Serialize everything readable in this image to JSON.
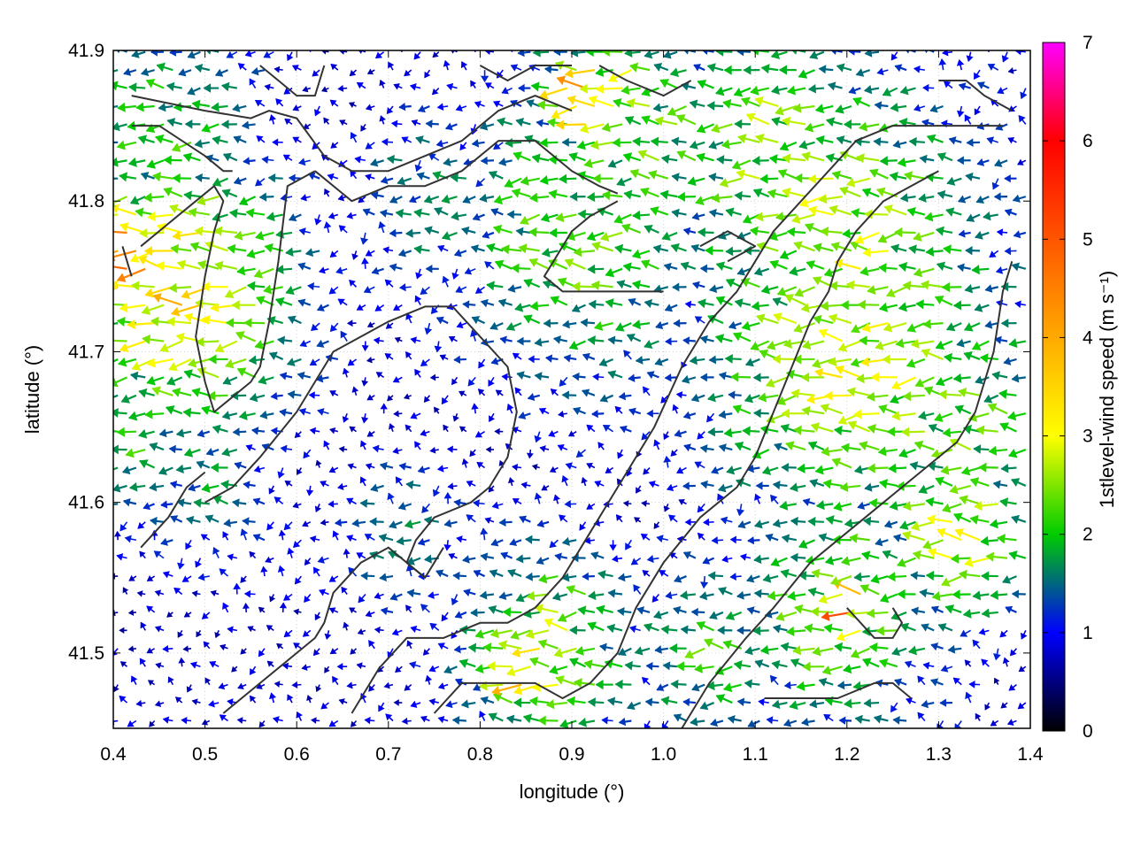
{
  "chart_data": {
    "type": "quiver",
    "xlabel": "longitude (°)",
    "ylabel": "latitude (°)",
    "xlim": [
      0.4,
      1.4
    ],
    "ylim": [
      41.45,
      41.9
    ],
    "x_ticks": [
      "0.4",
      "0.5",
      "0.6",
      "0.7",
      "0.8",
      "0.9",
      "1.0",
      "1.1",
      "1.2",
      "1.3",
      "1.4"
    ],
    "y_ticks": [
      "41.5",
      "41.6",
      "41.7",
      "41.8",
      "41.9"
    ],
    "grid": true,
    "colorbar": {
      "label": "1stlevel-wind speed (m s⁻¹)",
      "range": [
        0,
        7
      ],
      "ticks": [
        "0",
        "1",
        "2",
        "3",
        "4",
        "5",
        "6",
        "7"
      ],
      "colormap_stops": [
        {
          "value": 0,
          "color": "#000000"
        },
        {
          "value": 1,
          "color": "#0000ff"
        },
        {
          "value": 2,
          "color": "#00cc00"
        },
        {
          "value": 3,
          "color": "#ffff00"
        },
        {
          "value": 4,
          "color": "#ffaa00"
        },
        {
          "value": 5,
          "color": "#ff5500"
        },
        {
          "value": 6,
          "color": "#ff0000"
        },
        {
          "value": 7,
          "color": "#ff00ff"
        }
      ]
    },
    "wind_field": {
      "lon_start": 0.405,
      "lon_step": 0.02,
      "lon_count": 50,
      "lat_start": 41.455,
      "lat_step": 0.012,
      "lat_count": 38,
      "prevailing_direction": "westward",
      "speed_regions": [
        {
          "lon": 0.48,
          "lat": 41.74,
          "radius": 0.09,
          "speed": 3.2
        },
        {
          "lon": 0.42,
          "lat": 41.76,
          "radius": 0.05,
          "speed": 4.2
        },
        {
          "lon": 0.46,
          "lat": 41.85,
          "radius": 0.08,
          "speed": 2.0
        },
        {
          "lon": 0.75,
          "lat": 41.8,
          "radius": 0.06,
          "speed": 1.6
        },
        {
          "lon": 0.92,
          "lat": 41.78,
          "radius": 0.1,
          "speed": 2.3
        },
        {
          "lon": 0.95,
          "lat": 41.87,
          "radius": 0.06,
          "speed": 2.8
        },
        {
          "lon": 0.92,
          "lat": 41.87,
          "radius": 0.03,
          "speed": 4.0
        },
        {
          "lon": 1.0,
          "lat": 41.84,
          "radius": 0.08,
          "speed": 2.2
        },
        {
          "lon": 1.12,
          "lat": 41.84,
          "radius": 0.09,
          "speed": 2.4
        },
        {
          "lon": 1.2,
          "lat": 41.77,
          "radius": 0.12,
          "speed": 2.6
        },
        {
          "lon": 1.22,
          "lat": 41.7,
          "radius": 0.12,
          "speed": 2.8
        },
        {
          "lon": 1.32,
          "lat": 41.66,
          "radius": 0.09,
          "speed": 2.3
        },
        {
          "lon": 1.33,
          "lat": 41.58,
          "radius": 0.06,
          "speed": 2.8
        },
        {
          "lon": 1.2,
          "lat": 41.53,
          "radius": 0.08,
          "speed": 2.4
        },
        {
          "lon": 1.21,
          "lat": 41.53,
          "radius": 0.02,
          "speed": 4.8
        },
        {
          "lon": 0.88,
          "lat": 41.5,
          "radius": 0.07,
          "speed": 2.6
        },
        {
          "lon": 0.85,
          "lat": 41.49,
          "radius": 0.03,
          "speed": 3.6
        },
        {
          "lon": 1.05,
          "lat": 41.5,
          "radius": 0.06,
          "speed": 2.0
        },
        {
          "lon": 0.72,
          "lat": 41.58,
          "radius": 0.05,
          "speed": 1.6
        },
        {
          "lon": 0.5,
          "lat": 41.62,
          "radius": 0.06,
          "speed": 1.6
        },
        {
          "lon": 0.42,
          "lat": 41.64,
          "radius": 0.05,
          "speed": 2.0
        }
      ],
      "background_speed": 0.8
    },
    "contours": [
      [
        [
          0.42,
          41.87
        ],
        [
          0.5,
          41.86
        ],
        [
          0.55,
          41.855
        ],
        [
          0.57,
          41.86
        ],
        [
          0.6,
          41.855
        ],
        [
          0.63,
          41.83
        ],
        [
          0.66,
          41.82
        ],
        [
          0.7,
          41.82
        ],
        [
          0.74,
          41.83
        ],
        [
          0.78,
          41.84
        ],
        [
          0.82,
          41.86
        ],
        [
          0.86,
          41.87
        ],
        [
          0.9,
          41.86
        ]
      ],
      [
        [
          0.42,
          41.85
        ],
        [
          0.45,
          41.85
        ],
        [
          0.5,
          41.83
        ],
        [
          0.52,
          41.82
        ],
        [
          0.53,
          41.82
        ]
      ],
      [
        [
          0.43,
          41.77
        ],
        [
          0.47,
          41.79
        ],
        [
          0.51,
          41.81
        ],
        [
          0.52,
          41.8
        ],
        [
          0.51,
          41.78
        ],
        [
          0.5,
          41.75
        ],
        [
          0.49,
          41.71
        ],
        [
          0.5,
          41.68
        ],
        [
          0.51,
          41.66
        ],
        [
          0.55,
          41.68
        ],
        [
          0.56,
          41.69
        ],
        [
          0.57,
          41.72
        ],
        [
          0.58,
          41.76
        ],
        [
          0.59,
          41.81
        ],
        [
          0.62,
          41.82
        ]
      ],
      [
        [
          0.41,
          41.77
        ],
        [
          0.42,
          41.75
        ]
      ],
      [
        [
          0.62,
          41.82
        ],
        [
          0.66,
          41.8
        ],
        [
          0.7,
          41.81
        ],
        [
          0.74,
          41.81
        ],
        [
          0.78,
          41.82
        ],
        [
          0.82,
          41.84
        ],
        [
          0.86,
          41.84
        ],
        [
          0.9,
          41.82
        ],
        [
          0.93,
          41.81
        ],
        [
          0.95,
          41.805
        ]
      ],
      [
        [
          0.95,
          41.8
        ],
        [
          0.92,
          41.79
        ],
        [
          0.9,
          41.78
        ],
        [
          0.88,
          41.76
        ],
        [
          0.87,
          41.75
        ],
        [
          0.89,
          41.74
        ],
        [
          0.94,
          41.74
        ],
        [
          0.98,
          41.74
        ],
        [
          1.0,
          41.74
        ]
      ],
      [
        [
          0.5,
          41.6
        ],
        [
          0.53,
          41.61
        ],
        [
          0.56,
          41.63
        ],
        [
          0.6,
          41.66
        ],
        [
          0.64,
          41.7
        ],
        [
          0.7,
          41.72
        ],
        [
          0.74,
          41.73
        ],
        [
          0.77,
          41.73
        ],
        [
          0.8,
          41.71
        ],
        [
          0.83,
          41.69
        ],
        [
          0.84,
          41.66
        ],
        [
          0.83,
          41.63
        ],
        [
          0.81,
          41.61
        ],
        [
          0.79,
          41.6
        ],
        [
          0.75,
          41.59
        ],
        [
          0.73,
          41.575
        ],
        [
          0.72,
          41.56
        ],
        [
          0.74,
          41.55
        ],
        [
          0.76,
          41.57
        ]
      ],
      [
        [
          0.43,
          41.57
        ],
        [
          0.46,
          41.59
        ],
        [
          0.48,
          41.61
        ],
        [
          0.5,
          41.62
        ]
      ],
      [
        [
          0.52,
          41.46
        ],
        [
          0.56,
          41.48
        ],
        [
          0.6,
          41.5
        ],
        [
          0.62,
          41.51
        ],
        [
          0.63,
          41.52
        ],
        [
          0.64,
          41.54
        ],
        [
          0.67,
          41.56
        ],
        [
          0.7,
          41.57
        ],
        [
          0.74,
          41.55
        ]
      ],
      [
        [
          0.66,
          41.46
        ],
        [
          0.69,
          41.49
        ],
        [
          0.72,
          41.51
        ],
        [
          0.76,
          41.51
        ],
        [
          0.8,
          41.52
        ],
        [
          0.83,
          41.52
        ],
        [
          0.86,
          41.53
        ],
        [
          0.89,
          41.55
        ],
        [
          0.92,
          41.58
        ],
        [
          0.95,
          41.61
        ],
        [
          0.99,
          41.65
        ],
        [
          1.02,
          41.69
        ],
        [
          1.05,
          41.72
        ],
        [
          1.08,
          41.74
        ],
        [
          1.1,
          41.76
        ],
        [
          1.12,
          41.78
        ],
        [
          1.15,
          41.8
        ],
        [
          1.18,
          41.82
        ],
        [
          1.21,
          41.84
        ],
        [
          1.25,
          41.85
        ],
        [
          1.29,
          41.85
        ],
        [
          1.33,
          41.85
        ],
        [
          1.37,
          41.85
        ]
      ],
      [
        [
          0.75,
          41.46
        ],
        [
          0.78,
          41.48
        ],
        [
          0.82,
          41.48
        ],
        [
          0.86,
          41.48
        ],
        [
          0.89,
          41.47
        ],
        [
          0.92,
          41.48
        ],
        [
          0.95,
          41.5
        ],
        [
          0.97,
          41.53
        ],
        [
          1.0,
          41.56
        ],
        [
          1.04,
          41.59
        ],
        [
          1.08,
          41.61
        ],
        [
          1.1,
          41.63
        ],
        [
          1.12,
          41.66
        ],
        [
          1.14,
          41.69
        ],
        [
          1.16,
          41.72
        ],
        [
          1.18,
          41.74
        ],
        [
          1.19,
          41.76
        ],
        [
          1.21,
          41.78
        ],
        [
          1.24,
          41.8
        ],
        [
          1.27,
          41.81
        ],
        [
          1.3,
          41.82
        ]
      ],
      [
        [
          1.02,
          41.45
        ],
        [
          1.05,
          41.48
        ],
        [
          1.09,
          41.51
        ],
        [
          1.12,
          41.53
        ],
        [
          1.16,
          41.56
        ],
        [
          1.2,
          41.58
        ],
        [
          1.24,
          41.6
        ],
        [
          1.28,
          41.62
        ],
        [
          1.3,
          41.63
        ],
        [
          1.32,
          41.64
        ],
        [
          1.34,
          41.66
        ],
        [
          1.36,
          41.7
        ],
        [
          1.37,
          41.74
        ],
        [
          1.38,
          41.76
        ]
      ],
      [
        [
          1.2,
          41.53
        ],
        [
          1.23,
          41.51
        ],
        [
          1.25,
          41.51
        ],
        [
          1.26,
          41.52
        ],
        [
          1.25,
          41.53
        ]
      ],
      [
        [
          1.11,
          41.47
        ],
        [
          1.15,
          41.47
        ],
        [
          1.19,
          41.47
        ],
        [
          1.23,
          41.48
        ],
        [
          1.25,
          41.48
        ],
        [
          1.27,
          41.47
        ]
      ],
      [
        [
          1.3,
          41.88
        ],
        [
          1.33,
          41.88
        ],
        [
          1.35,
          41.87
        ],
        [
          1.38,
          41.86
        ]
      ],
      [
        [
          1.04,
          41.77
        ],
        [
          1.07,
          41.78
        ],
        [
          1.1,
          41.77
        ],
        [
          1.07,
          41.76
        ]
      ],
      [
        [
          0.56,
          41.89
        ],
        [
          0.58,
          41.88
        ],
        [
          0.6,
          41.87
        ],
        [
          0.62,
          41.87
        ],
        [
          0.63,
          41.89
        ]
      ],
      [
        [
          0.8,
          41.89
        ],
        [
          0.83,
          41.88
        ],
        [
          0.86,
          41.89
        ],
        [
          0.9,
          41.89
        ]
      ],
      [
        [
          0.93,
          41.89
        ],
        [
          0.96,
          41.88
        ],
        [
          1.0,
          41.87
        ],
        [
          1.03,
          41.88
        ]
      ]
    ]
  }
}
